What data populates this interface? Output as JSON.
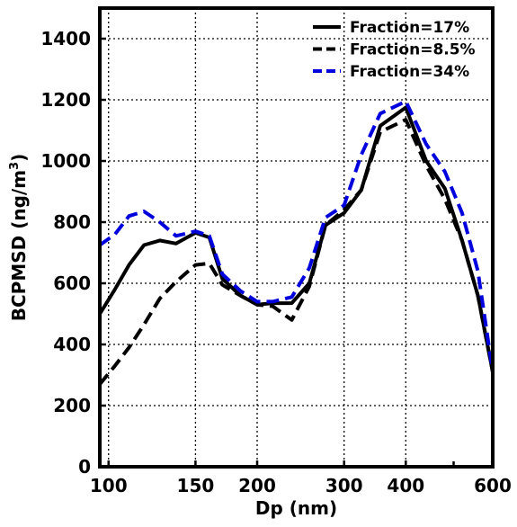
{
  "chart_data": {
    "type": "line",
    "title": "",
    "xlabel": "Dp (nm)",
    "ylabel": "BCPMSD (ng/m3)",
    "ylabel_main": "BCPMSD (ng/m",
    "ylabel_sup": "3",
    "ylabel_end": ")",
    "x_scale": "log",
    "xlim": [
      96,
      600
    ],
    "ylim": [
      0,
      1500
    ],
    "x_ticks": [
      100,
      150,
      200,
      300,
      400,
      600
    ],
    "x_tick_labels": [
      "100",
      "150",
      "200",
      "300",
      "400",
      "600"
    ],
    "x_minor_ticks": [
      500
    ],
    "y_ticks": [
      0,
      200,
      400,
      600,
      800,
      1000,
      1200,
      1400
    ],
    "y_tick_labels": [
      "0",
      "200",
      "400",
      "600",
      "800",
      "1000",
      "1200",
      "1400"
    ],
    "grid": true,
    "grid_style": "dotted",
    "legend_position": "top-right",
    "series": [
      {
        "name": "Fraction=17%",
        "color": "#000000",
        "dash": "solid",
        "x": [
          96,
          103,
          110,
          118,
          127,
          137,
          150,
          160,
          170,
          185,
          200,
          215,
          235,
          255,
          275,
          300,
          325,
          355,
          400,
          440,
          480,
          520,
          560,
          600
        ],
        "y": [
          500,
          580,
          660,
          725,
          740,
          730,
          765,
          750,
          615,
          560,
          530,
          535,
          535,
          600,
          790,
          830,
          905,
          1115,
          1175,
          1000,
          910,
          740,
          560,
          310
        ]
      },
      {
        "name": "Fraction=8.5%",
        "color": "#000000",
        "dash": "dashed",
        "x": [
          96,
          103,
          110,
          118,
          127,
          137,
          150,
          160,
          170,
          185,
          200,
          215,
          235,
          255,
          275,
          300,
          325,
          355,
          400,
          440,
          480,
          520,
          560,
          600
        ],
        "y": [
          270,
          330,
          390,
          465,
          550,
          605,
          660,
          665,
          595,
          560,
          530,
          525,
          480,
          590,
          790,
          840,
          905,
          1095,
          1135,
          985,
          875,
          740,
          560,
          310
        ]
      },
      {
        "name": "Fraction=34%",
        "color": "#0000dd",
        "dash": "dashed",
        "x": [
          96,
          103,
          110,
          118,
          127,
          137,
          150,
          160,
          170,
          185,
          200,
          215,
          235,
          255,
          275,
          300,
          325,
          355,
          400,
          440,
          480,
          520,
          560,
          600
        ],
        "y": [
          725,
          760,
          820,
          835,
          800,
          755,
          770,
          755,
          630,
          575,
          540,
          540,
          555,
          650,
          815,
          855,
          1020,
          1155,
          1195,
          1055,
          965,
          830,
          640,
          310
        ]
      }
    ]
  }
}
